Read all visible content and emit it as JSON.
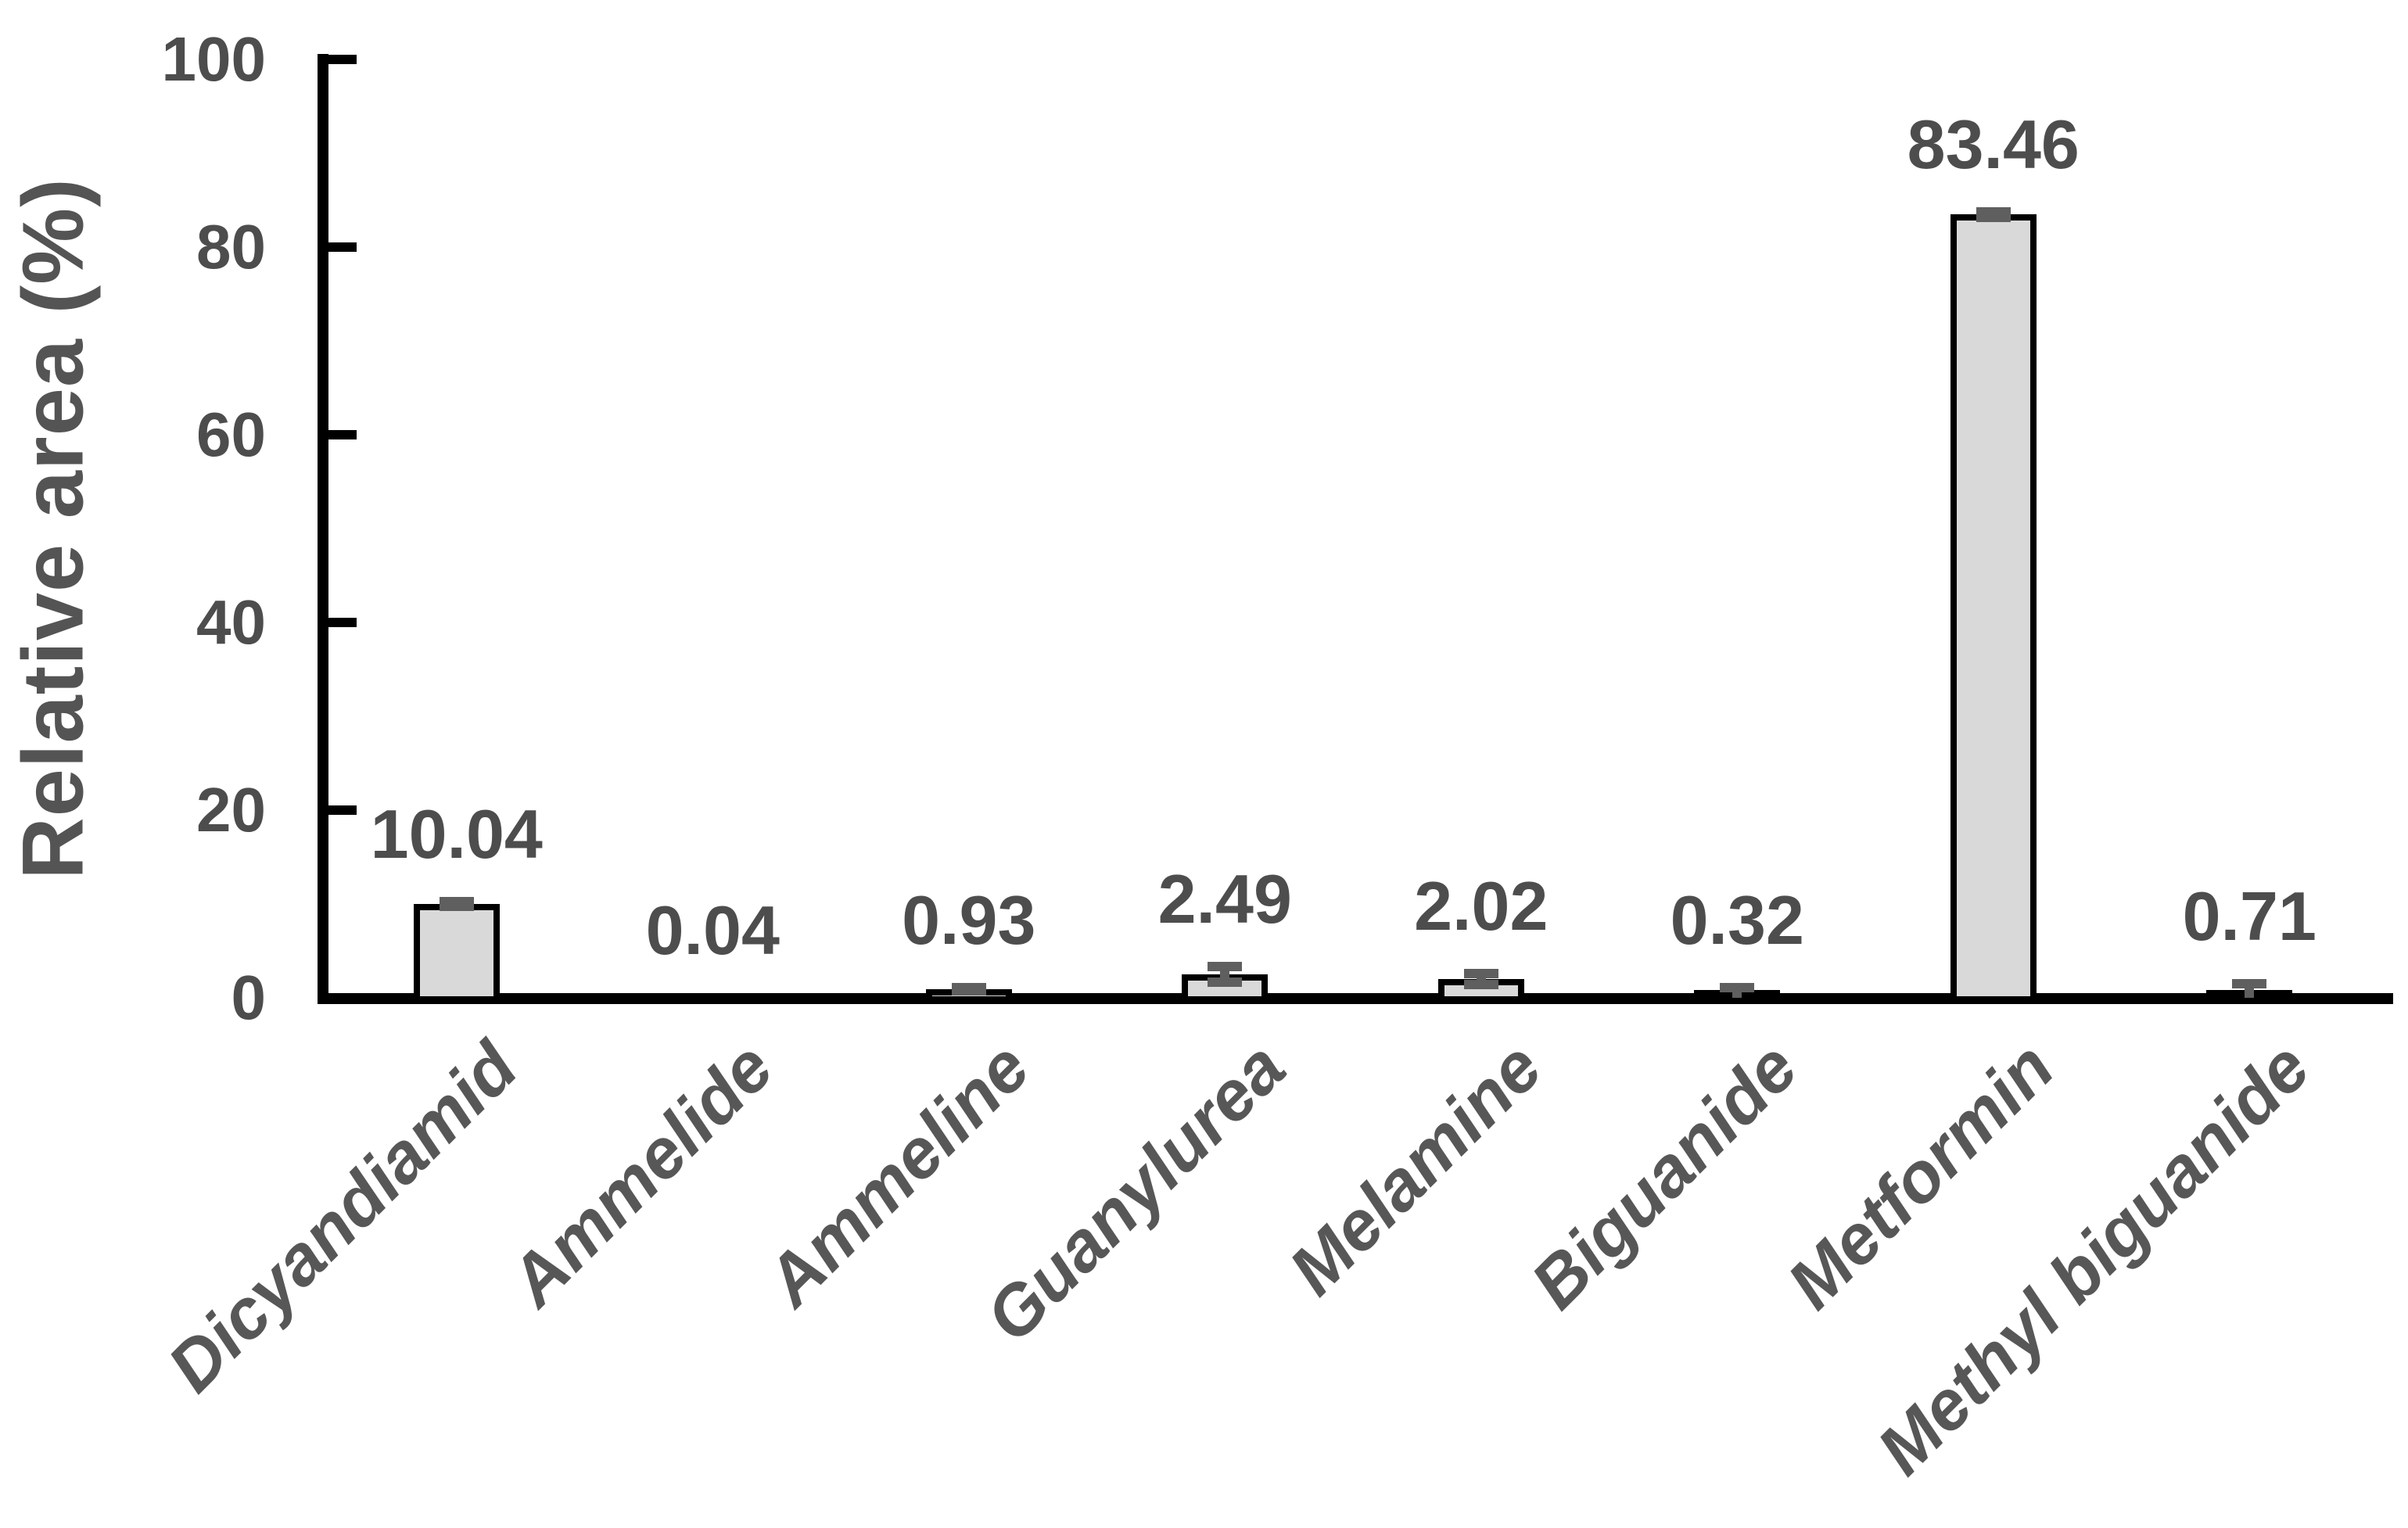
{
  "chart_data": {
    "type": "bar",
    "title": "",
    "ylabel": "Relative area (%)",
    "xlabel": "",
    "categories": [
      "Dicyandiamid",
      "Ammelide",
      "Ammeline",
      "Guanylurea",
      "Melamine",
      "Biguanide",
      "Metformin",
      "Methyl biguanide"
    ],
    "values": [
      10.04,
      0.04,
      0.93,
      2.49,
      2.02,
      0.32,
      83.46,
      0.71
    ],
    "value_labels": [
      "10.04",
      "0.04",
      "0.93",
      "2.49",
      "2.02",
      "0.32",
      "83.46",
      "0.71"
    ],
    "errors": [
      0.25,
      0,
      0.15,
      0.85,
      0.6,
      0.75,
      0.3,
      0.8
    ],
    "yticks": [
      0,
      20,
      40,
      60,
      80,
      100
    ],
    "ylim": [
      0,
      100
    ],
    "grid": false,
    "legend": false,
    "colors": {
      "bar_fill": "#d9d9d9",
      "bar_border": "#000000",
      "error_bar": "#5f5f5f",
      "axis": "#000000",
      "text": "#4d4d4d",
      "category_text": "#575757"
    }
  }
}
